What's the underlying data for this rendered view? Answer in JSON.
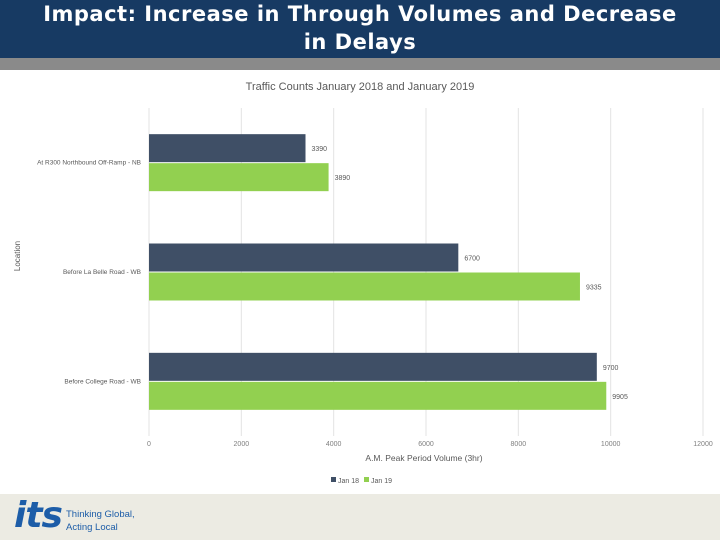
{
  "slide": {
    "title_line1": "Impact: Increase in Through Volumes and Decrease",
    "title_line2": "in Delays"
  },
  "footer": {
    "logo_text": "its",
    "tagline_line1": "Thinking Global,",
    "tagline_line2": "Acting Local"
  },
  "colors": {
    "title_bg": "#173a63",
    "series_jan18": "#3f4f66",
    "series_jan19": "#92d050",
    "logo_blue": "#1d5da8",
    "logo_green": "#8cc63f"
  },
  "chart_data": {
    "type": "bar",
    "orientation": "horizontal",
    "title": "Traffic Counts January 2018 and January 2019",
    "xlabel": "A.M. Peak Period Volume (3hr)",
    "ylabel": "Location",
    "categories": [
      "At R300 Northbound Off-Ramp - NB",
      "Before La Belle Road - WB",
      "Before College Road - WB"
    ],
    "series": [
      {
        "name": "Jan 18",
        "values": [
          3390,
          6700,
          9700
        ]
      },
      {
        "name": "Jan 19",
        "values": [
          3890,
          9335,
          9905
        ]
      }
    ],
    "xlim": [
      0,
      12000
    ],
    "xticks": [
      "0",
      "2000",
      "4000",
      "6000",
      "8000",
      "10000",
      "12000"
    ],
    "data_labels": [
      [
        "3390",
        "6700",
        "9700"
      ],
      [
        "3890",
        "9335",
        "9905"
      ]
    ],
    "grid": true,
    "legend_position": "bottom"
  }
}
